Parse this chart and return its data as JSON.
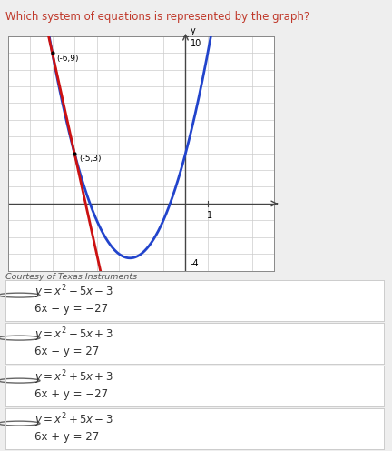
{
  "title": "Which system of equations is represented by the graph?",
  "title_color": "#c0392b",
  "graph_bg": "#ffffff",
  "outer_bg": "#eeeeee",
  "courtesy": "Courtesy of Texas Instruments",
  "point1": [
    -6,
    9
  ],
  "point2": [
    -5,
    3
  ],
  "xmin": -8,
  "xmax": 4,
  "ymin": -4,
  "ymax": 10,
  "parabola_color": "#2244cc",
  "line_color": "#cc1111",
  "grid_color": "#cccccc",
  "axis_color": "#444444",
  "options": [
    {
      "line1_math": "$y = x^2 - 5x - 3$",
      "line2": "6x − y = −27"
    },
    {
      "line1_math": "$y = x^2 - 5x + 3$",
      "line2": "6x − y = 27"
    },
    {
      "line1_math": "$y = x^2 + 5x + 3$",
      "line2": "6x + y = −27"
    },
    {
      "line1_math": "$y = x^2 + 5x - 3$",
      "line2": "6x + y = 27"
    }
  ],
  "option_bg": "#ffffff",
  "option_border": "#cccccc",
  "option_text_color": "#333333",
  "radio_color": "#666666"
}
